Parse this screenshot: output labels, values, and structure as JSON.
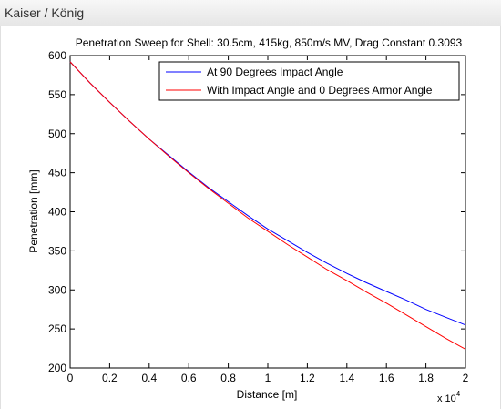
{
  "window": {
    "title": "Kaiser / König"
  },
  "chart_data": {
    "type": "line",
    "title": "Penetration Sweep for Shell: 30.5cm, 415kg, 850m/s MV, Drag Constant 0.3093",
    "xlabel": "Distance [m]",
    "ylabel": "Penetration [mm]",
    "x_multiplier_label": "x 10",
    "x_multiplier_exponent": "4",
    "xlim": [
      0,
      20000
    ],
    "ylim": [
      200,
      600
    ],
    "x_ticks": [
      0,
      2000,
      4000,
      6000,
      8000,
      10000,
      12000,
      14000,
      16000,
      18000,
      20000
    ],
    "x_tick_labels": [
      "0",
      "0.2",
      "0.4",
      "0.6",
      "0.8",
      "1",
      "1.2",
      "1.4",
      "1.6",
      "1.8",
      "2"
    ],
    "y_ticks": [
      200,
      250,
      300,
      350,
      400,
      450,
      500,
      550,
      600
    ],
    "y_tick_labels": [
      "200",
      "250",
      "300",
      "350",
      "400",
      "450",
      "500",
      "550",
      "600"
    ],
    "grid": false,
    "legend_position": "top-right",
    "x": [
      0,
      1000,
      2000,
      3000,
      4000,
      5000,
      6000,
      7000,
      8000,
      9000,
      10000,
      11000,
      12000,
      13000,
      14000,
      15000,
      16000,
      17000,
      18000,
      19000,
      20000
    ],
    "series": [
      {
        "name": "At 90 Degrees Impact Angle",
        "color": "#0000ff",
        "values": [
          592,
          565,
          540,
          516,
          493,
          472,
          451,
          431,
          413,
          395,
          378,
          363,
          348,
          334,
          321,
          309,
          298,
          287,
          275,
          265,
          255
        ]
      },
      {
        "name": "With Impact Angle and 0 Degrees Armor Angle",
        "color": "#ff0000",
        "values": [
          592,
          565,
          540,
          516,
          493,
          471,
          450,
          430,
          411,
          392,
          375,
          358,
          342,
          326,
          312,
          297,
          283,
          268,
          253,
          238,
          224
        ]
      }
    ]
  }
}
